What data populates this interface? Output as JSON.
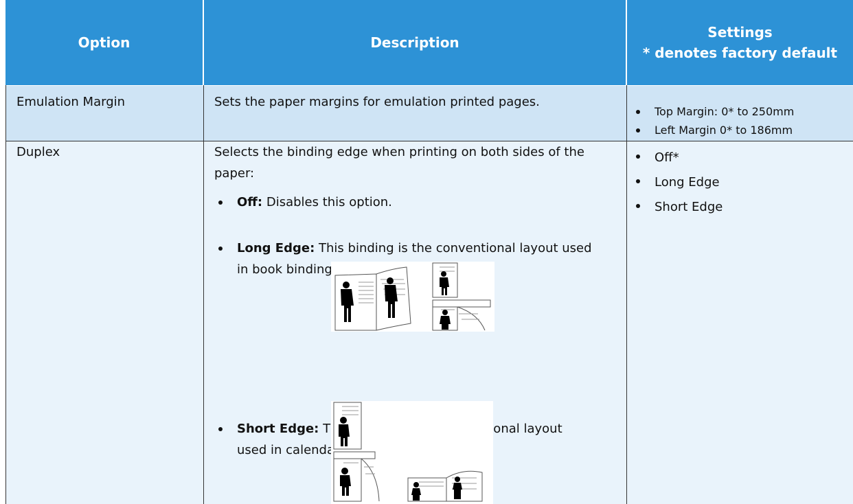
{
  "table": {
    "headers": [
      "Option",
      "Description",
      [
        "Settings",
        "* denotes factory default"
      ]
    ],
    "rows": [
      {
        "option": "Emulation Margin",
        "description": "Sets the paper margins for emulation printed pages.",
        "settings": [
          "Top Margin: 0* to 250mm",
          "Left Margin 0* to 186mm"
        ]
      },
      {
        "option": "Duplex",
        "description": {
          "intro": "Selects the binding edge when printing on both sides of the paper:",
          "items": [
            {
              "term": "Off:",
              "text": "Disables this option."
            },
            {
              "term": "Long Edge:",
              "text": "This binding is the conventional layout used in book binding."
            },
            {
              "term": "Short Edge:",
              "text": "This binding is the conventional layout used in calendars."
            }
          ]
        },
        "settings": [
          "Off*",
          "Long Edge",
          "Short Edge"
        ]
      }
    ]
  }
}
